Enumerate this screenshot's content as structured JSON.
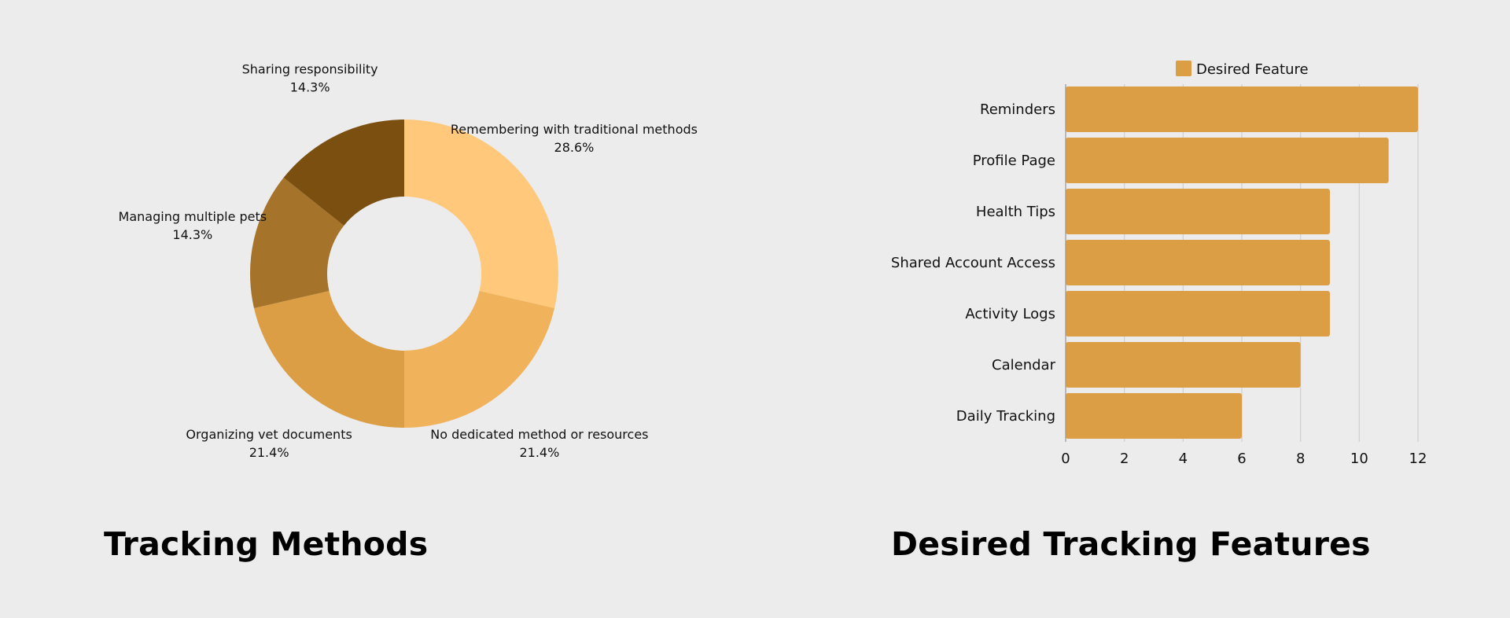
{
  "chart_data": [
    {
      "type": "pie",
      "title": "Tracking Methods",
      "donut": true,
      "slices": [
        {
          "label": "Remembering with traditional methods",
          "percent_label": "28.6%",
          "value": 28.6,
          "color": "#ffc87a"
        },
        {
          "label": "No dedicated method or resources",
          "percent_label": "21.4%",
          "value": 21.4,
          "color": "#f0b35b"
        },
        {
          "label": "Organizing vet documents",
          "percent_label": "21.4%",
          "value": 21.4,
          "color": "#db9e44"
        },
        {
          "label": "Managing multiple pets",
          "percent_label": "14.3%",
          "value": 14.3,
          "color": "#a6732a"
        },
        {
          "label": "Sharing responsibility",
          "percent_label": "14.3%",
          "value": 14.3,
          "color": "#7a4f10"
        }
      ]
    },
    {
      "type": "bar",
      "orientation": "horizontal",
      "title": "Desired Tracking Features",
      "categories": [
        "Reminders",
        "Profile Page",
        "Health Tips",
        "Shared Account Access",
        "Activity Logs",
        "Calendar",
        "Daily Tracking"
      ],
      "series": [
        {
          "name": "Desired Feature",
          "values": [
            12,
            11,
            9,
            9,
            9,
            8,
            6
          ],
          "color": "#db9e44"
        }
      ],
      "xlim": [
        0,
        12
      ],
      "xticks": [
        "0",
        "2",
        "4",
        "6",
        "8",
        "10",
        "12"
      ],
      "grid": true,
      "legend": "top"
    }
  ]
}
